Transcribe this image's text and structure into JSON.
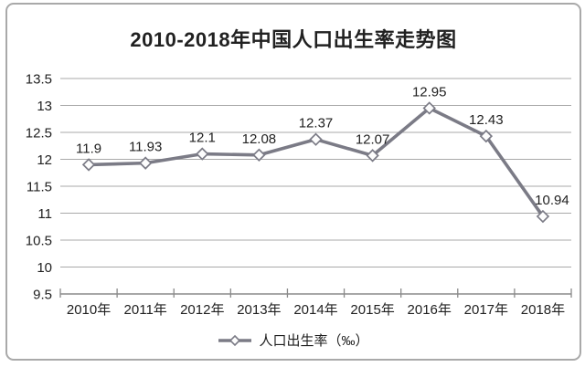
{
  "chart_data": {
    "type": "line",
    "title": "2010-2018年中国人口出生率走势图",
    "categories": [
      "2010年",
      "2011年",
      "2012年",
      "2013年",
      "2014年",
      "2015年",
      "2016年",
      "2017年",
      "2018年"
    ],
    "series": [
      {
        "name": "人口出生率（‰）",
        "values": [
          11.9,
          11.93,
          12.1,
          12.08,
          12.37,
          12.07,
          12.95,
          12.43,
          10.94
        ]
      }
    ],
    "data_labels": [
      "11.9",
      "11.93",
      "12.1",
      "12.08",
      "12.37",
      "12.07",
      "12.95",
      "12.43",
      "10.94"
    ],
    "xlabel": "",
    "ylabel": "",
    "ylim": [
      9.5,
      13.5
    ],
    "ytick_step": 0.5,
    "ytick_labels": [
      "9.5",
      "10",
      "10.5",
      "11",
      "11.5",
      "12",
      "12.5",
      "13",
      "13.5"
    ],
    "grid": true,
    "legend_position": "bottom",
    "marker": "open-diamond",
    "label_dx": [
      0,
      0,
      0,
      0,
      0,
      0,
      0,
      0,
      10
    ]
  },
  "legend": {
    "label": "人口出生率（‰）"
  },
  "colors": {
    "line": "#7b7b86",
    "marker_fill": "#fdfdfd",
    "grid": "#a9a9a9",
    "axis": "#8a8a8a",
    "text": "#212121",
    "border": "#a9a9a9",
    "background": "#ffffff"
  }
}
